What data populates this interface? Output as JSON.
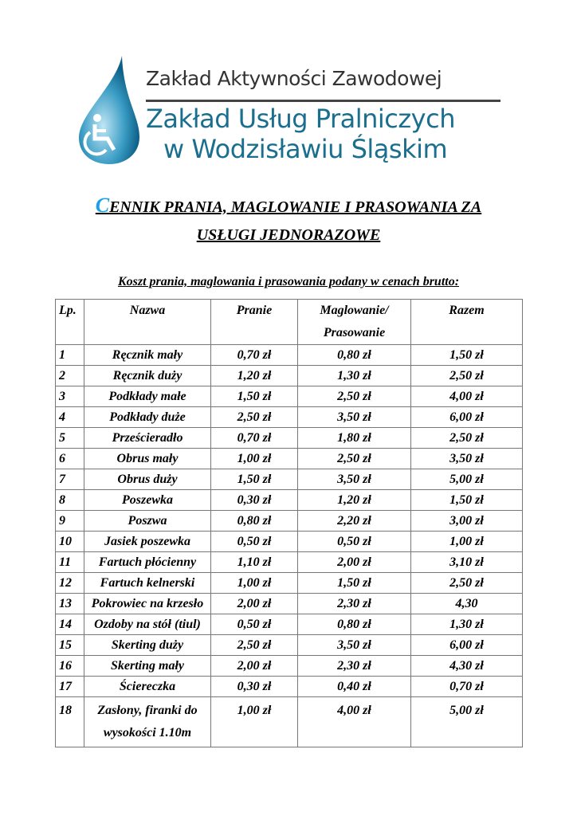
{
  "logo": {
    "line1": "Zakład Aktywności Zawodowej",
    "line2": "Zakład Usług Pralniczych",
    "line3": "w Wodzisławiu Śląskim",
    "icon": "wheelchair-water-drop"
  },
  "title": {
    "first_letter": "C",
    "line1_rest": "ENNIK PRANIA, MAGLOWANIE I PRASOWANIA ZA",
    "line2": "USŁUGI JEDNORAZOWE"
  },
  "subtitle": "Koszt prania, maglowania i prasowania podany w cenach brutto:",
  "table": {
    "headers": [
      "Lp.",
      "Nazwa",
      "Pranie",
      "Maglowanie/",
      "Prasowanie",
      "Razem"
    ],
    "rows": [
      [
        "1",
        "Ręcznik mały",
        "0,70 zł",
        "0,80 zł",
        "1,50 zł"
      ],
      [
        "2",
        "Ręcznik duży",
        "1,20 zł",
        "1,30 zł",
        "2,50 zł"
      ],
      [
        "3",
        "Podkłady małe",
        "1,50 zł",
        "2,50 zł",
        "4,00 zł"
      ],
      [
        "4",
        "Podkłady duże",
        "2,50 zł",
        "3,50 zł",
        "6,00 zł"
      ],
      [
        "5",
        "Prześcieradło",
        "0,70 zł",
        "1,80 zł",
        "2,50 zł"
      ],
      [
        "6",
        "Obrus mały",
        "1,00 zł",
        "2,50 zł",
        "3,50 zł"
      ],
      [
        "7",
        "Obrus duży",
        "1,50 zł",
        "3,50 zł",
        "5,00 zł"
      ],
      [
        "8",
        "Poszewka",
        "0,30 zł",
        "1,20 zł",
        "1,50 zł"
      ],
      [
        "9",
        "Poszwa",
        "0,80 zł",
        "2,20 zł",
        "3,00 zł"
      ],
      [
        "10",
        "Jasiek poszewka",
        "0,50 zł",
        "0,50 zł",
        "1,00 zł"
      ],
      [
        "11",
        "Fartuch płócienny",
        "1,10 zł",
        "2,00 zł",
        "3,10 zł"
      ],
      [
        "12",
        "Fartuch kelnerski",
        "1,00 zł",
        "1,50 zł",
        "2,50 zł"
      ],
      [
        "13",
        "Pokrowiec na krzesło",
        "2,00 zł",
        "2,30 zł",
        "4,30"
      ],
      [
        "14",
        "Ozdoby na stół (tiul)",
        "0,50 zł",
        "0,80 zł",
        "1,30 zł"
      ],
      [
        "15",
        "Skerting duży",
        "2,50 zł",
        "3,50 zł",
        "6,00 zł"
      ],
      [
        "16",
        "Skerting mały",
        "2,00 zł",
        "2,30 zł",
        "4,30 zł"
      ],
      [
        "17",
        "Ściereczka",
        "0,30 zł",
        "0,40 zł",
        "0,70 zł"
      ],
      [
        "18",
        "Zasłony, firanki do wysokości  1.10m",
        "1,00 zł",
        "4,00 zł",
        "5,00 zł"
      ]
    ]
  }
}
